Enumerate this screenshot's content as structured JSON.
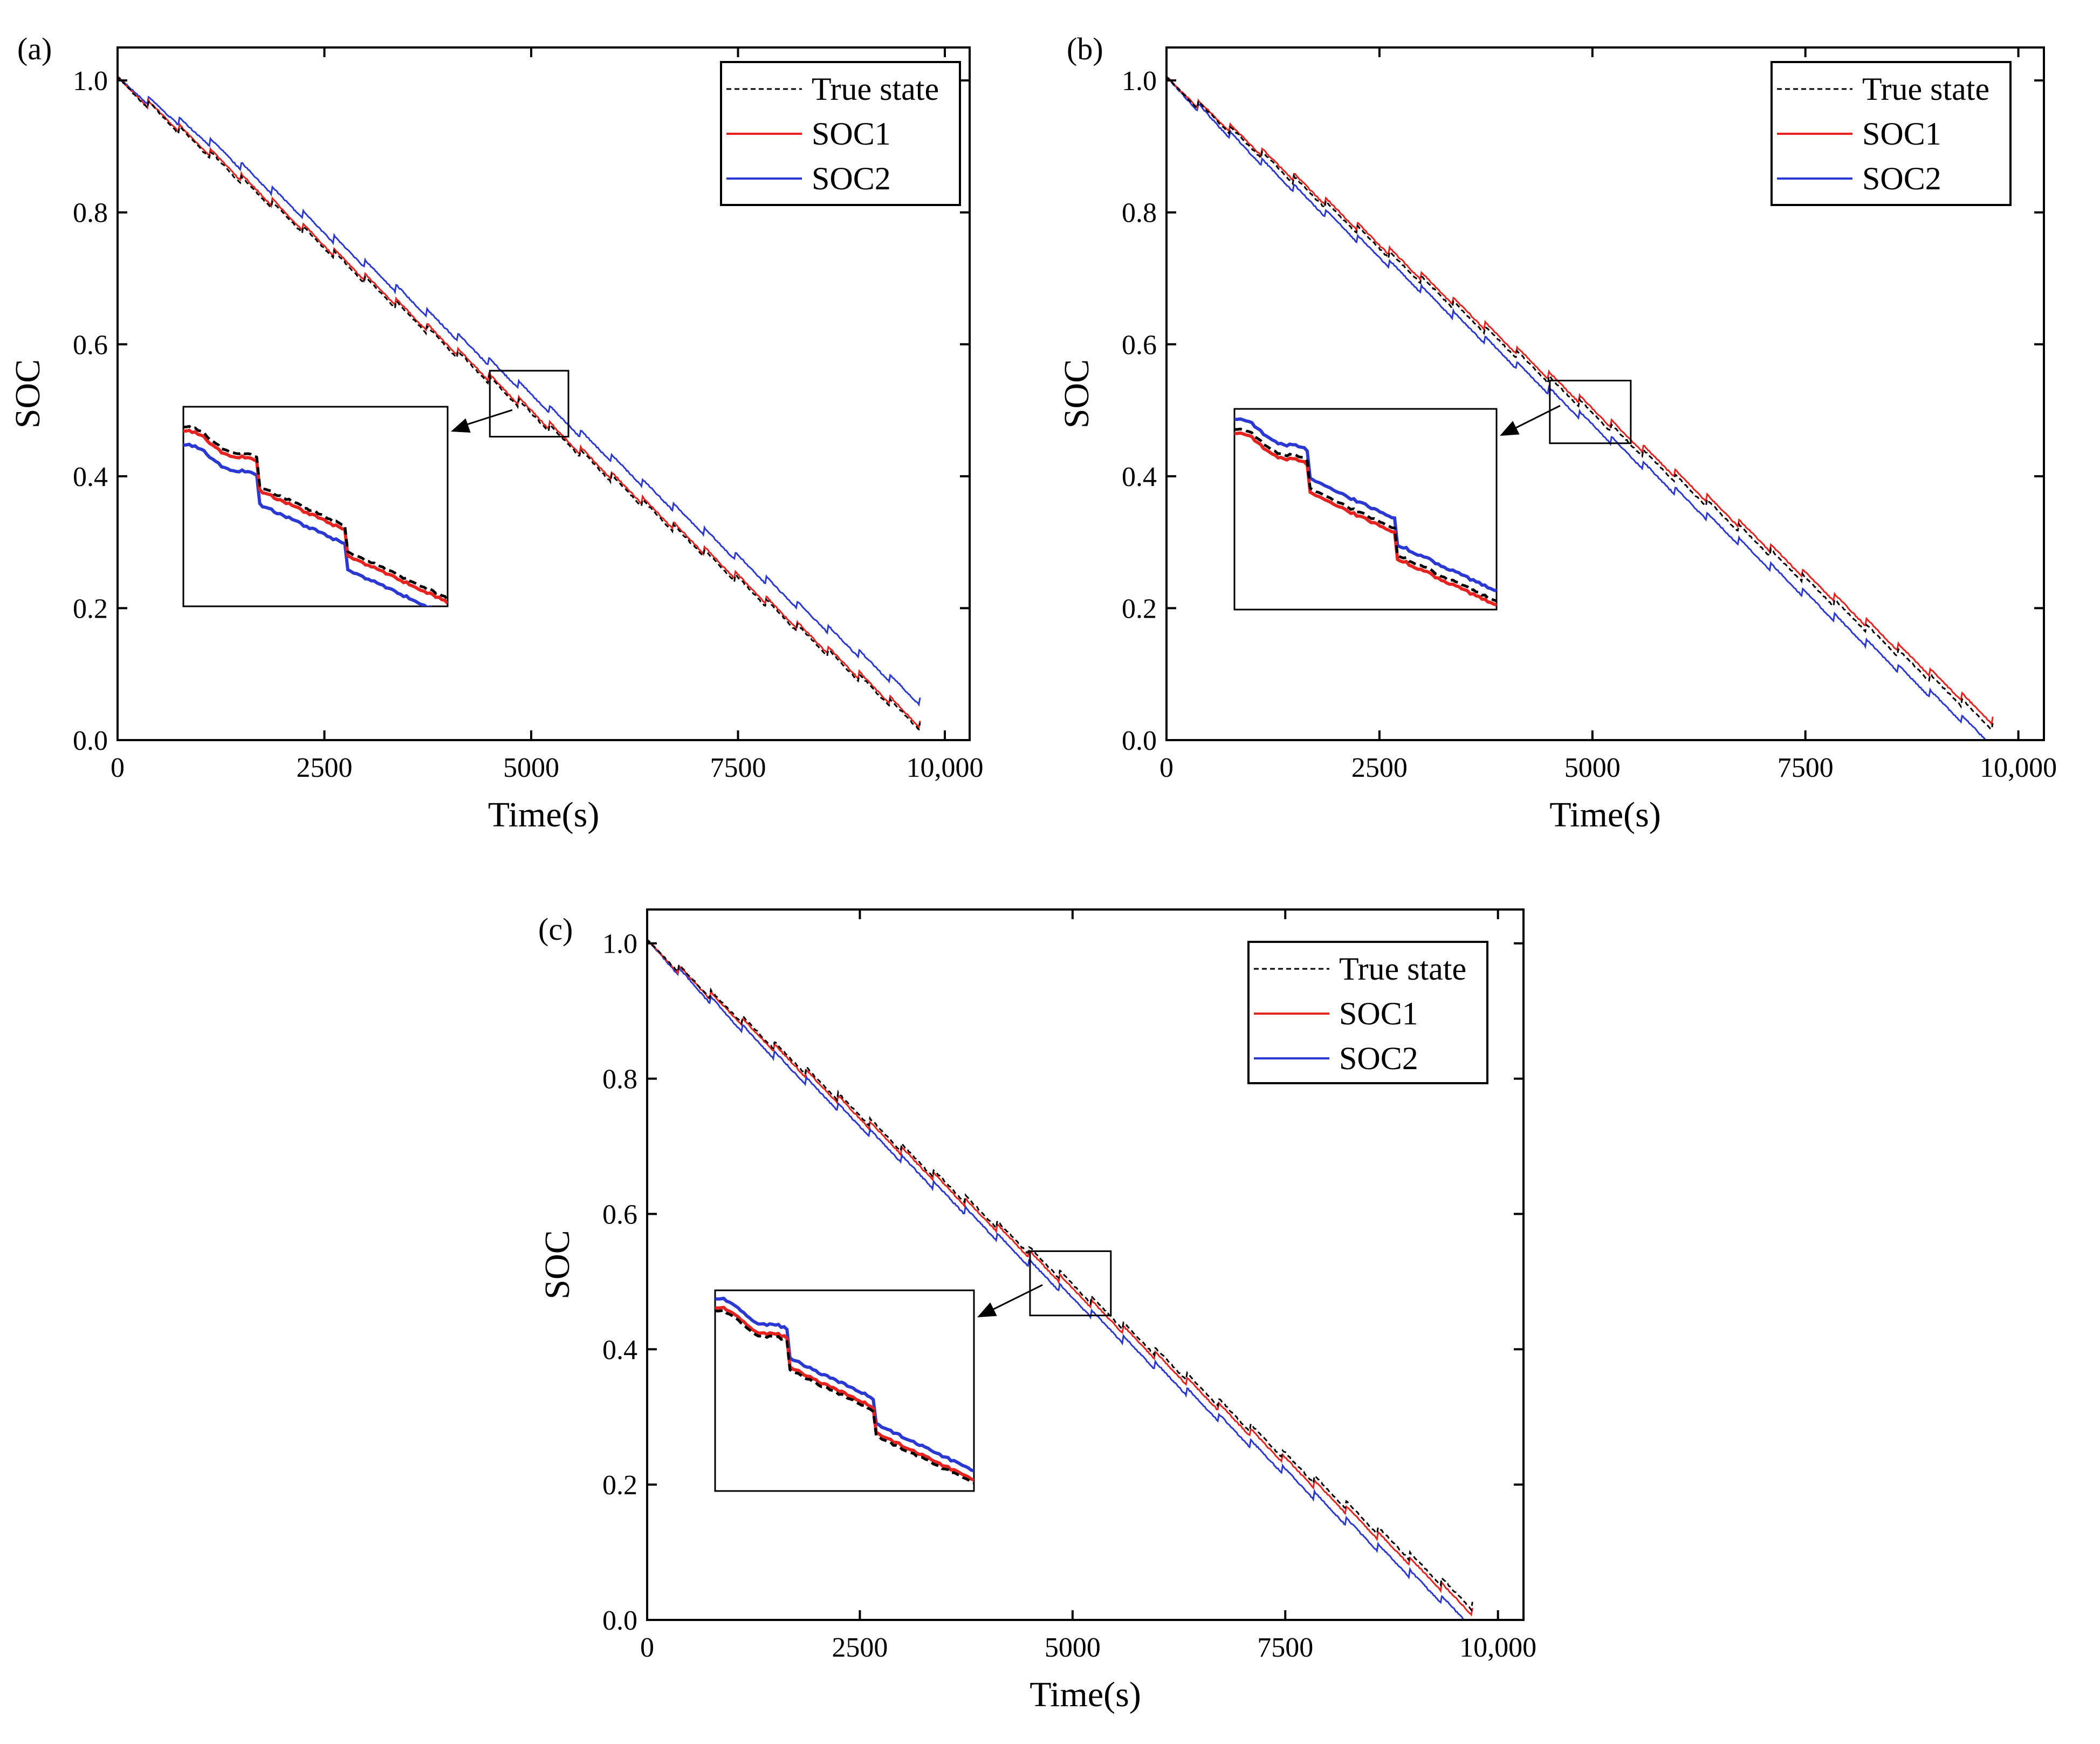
{
  "figure": {
    "description_free": true
  },
  "colors": {
    "true_state": "#000000",
    "soc1": "#e8231f",
    "soc2": "#2a38d4",
    "axes": "#000000",
    "background": "#ffffff"
  },
  "chart_data": [
    {
      "type": "line",
      "panel_label": "(a)",
      "title": "",
      "xlabel": "Time(s)",
      "ylabel": "SOC",
      "xlim": [
        0,
        10300
      ],
      "ylim": [
        0,
        1.05
      ],
      "xticks": [
        0,
        2500,
        5000,
        7500,
        10000
      ],
      "xtick_labels": [
        "0",
        "2500",
        "5000",
        "7500",
        "10,000"
      ],
      "yticks": [
        0,
        0.2,
        0.4,
        0.6,
        0.8,
        1.0
      ],
      "ytick_labels": [
        "0.0",
        "0.2",
        "0.4",
        "0.6",
        "0.8",
        "1.0"
      ],
      "legend_position": "top-right",
      "series": [
        {
          "name": "True state",
          "style": "dashed",
          "end_value": 0.02,
          "offset": 0.0
        },
        {
          "name": "SOC1",
          "style": "solid",
          "end_value": 0.02,
          "offset": 0.004
        },
        {
          "name": "SOC2",
          "style": "solid",
          "end_value": 0.04,
          "offset": 0.018
        }
      ],
      "zoom_window": {
        "x": [
          4500,
          5450
        ],
        "y": [
          0.46,
          0.56
        ]
      }
    },
    {
      "type": "line",
      "panel_label": "(b)",
      "title": "",
      "xlabel": "Time(s)",
      "ylabel": "SOC",
      "xlim": [
        0,
        10300
      ],
      "ylim": [
        0,
        1.05
      ],
      "xticks": [
        0,
        2500,
        5000,
        7500,
        10000
      ],
      "xtick_labels": [
        "0",
        "2500",
        "5000",
        "7500",
        "10,000"
      ],
      "yticks": [
        0,
        0.2,
        0.4,
        0.6,
        0.8,
        1.0
      ],
      "ytick_labels": [
        "0.0",
        "0.2",
        "0.4",
        "0.6",
        "0.8",
        "1.0"
      ],
      "legend_position": "top-right",
      "series": [
        {
          "name": "True state",
          "style": "dashed",
          "end_value": 0.02,
          "offset": 0.0
        },
        {
          "name": "SOC1",
          "style": "solid",
          "end_value": 0.025,
          "offset": 0.004
        },
        {
          "name": "SOC2",
          "style": "solid",
          "end_value": 0.005,
          "offset": -0.01
        }
      ],
      "zoom_window": {
        "x": [
          4500,
          5450
        ],
        "y": [
          0.45,
          0.545
        ]
      }
    },
    {
      "type": "line",
      "panel_label": "(c)",
      "title": "",
      "xlabel": "Time(s)",
      "ylabel": "SOC",
      "xlim": [
        0,
        10300
      ],
      "ylim": [
        0,
        1.05
      ],
      "xticks": [
        0,
        2500,
        5000,
        7500,
        10000
      ],
      "xtick_labels": [
        "0",
        "2500",
        "5000",
        "7500",
        "10,000"
      ],
      "yticks": [
        0,
        0.2,
        0.4,
        0.6,
        0.8,
        1.0
      ],
      "ytick_labels": [
        "0.0",
        "0.2",
        "0.4",
        "0.6",
        "0.8",
        "1.0"
      ],
      "legend_position": "top-right",
      "series": [
        {
          "name": "True state",
          "style": "dashed",
          "end_value": 0.02,
          "offset": 0.0
        },
        {
          "name": "SOC1",
          "style": "solid",
          "end_value": 0.015,
          "offset": -0.003
        },
        {
          "name": "SOC2",
          "style": "solid",
          "end_value": 0.005,
          "offset": -0.012
        }
      ],
      "zoom_window": {
        "x": [
          4500,
          5450
        ],
        "y": [
          0.45,
          0.545
        ]
      }
    }
  ]
}
